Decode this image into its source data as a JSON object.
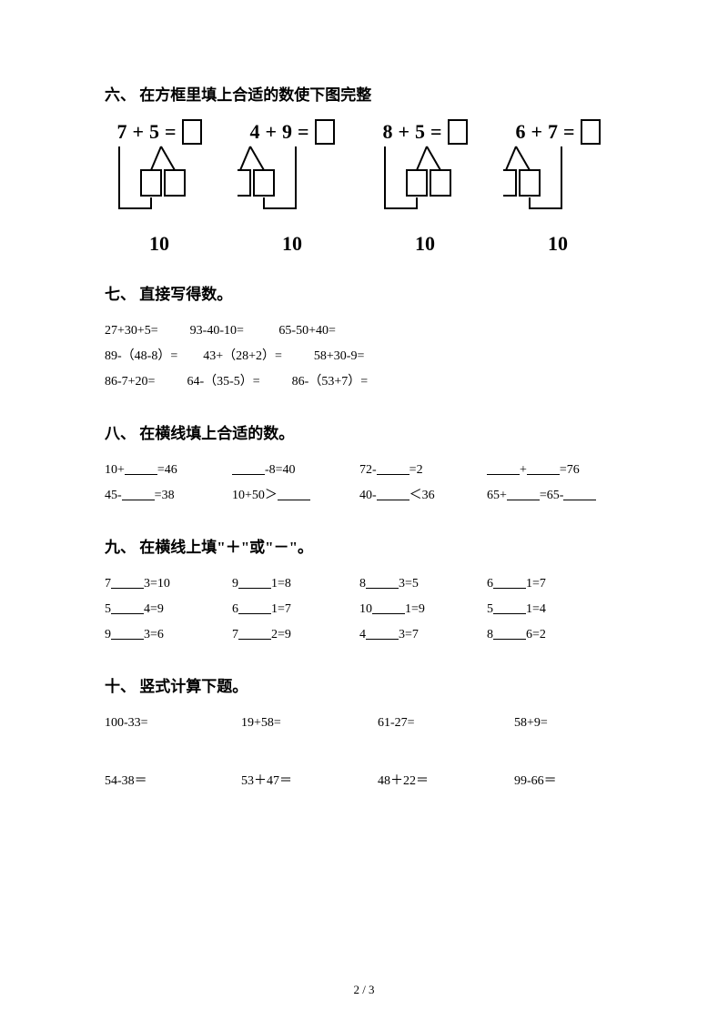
{
  "section6": {
    "title": "六、 在方框里填上合适的数使下图完整",
    "problems": [
      {
        "a": "7",
        "op": "+",
        "b": "5",
        "target": "10"
      },
      {
        "a": "4",
        "op": "+",
        "b": "9",
        "target": "10"
      },
      {
        "a": "8",
        "op": "+",
        "b": "5",
        "target": "10"
      },
      {
        "a": "6",
        "op": "+",
        "b": "7",
        "target": "10"
      }
    ]
  },
  "section7": {
    "title": "七、 直接写得数。",
    "rows": [
      [
        "27+30+5=",
        "93-40-10=",
        "65-50+40="
      ],
      [
        "89-（48-8）=",
        "43+（28+2）=",
        "58+30-9="
      ],
      [
        "86-7+20=",
        "64-（35-5）=",
        "86-（53+7）="
      ]
    ]
  },
  "section8": {
    "title": "八、 在横线填上合适的数。",
    "rows": [
      [
        {
          "pre": "10+",
          "blank": true,
          "post": "=46"
        },
        {
          "pre": "",
          "blank": true,
          "post": "-8=40"
        },
        {
          "pre": "72-",
          "blank": true,
          "post": "=2"
        },
        {
          "pre": "",
          "blank": true,
          "mid": "+",
          "blank2": true,
          "post": "=76"
        }
      ],
      [
        {
          "pre": "45-",
          "blank": true,
          "post": "=38"
        },
        {
          "pre": "10+50＞",
          "blank": true,
          "post": ""
        },
        {
          "pre": "40-",
          "blank": true,
          "post": "＜36"
        },
        {
          "pre": "65+",
          "blank": true,
          "mid": "=65-",
          "blank2": true,
          "post": ""
        }
      ]
    ]
  },
  "section9": {
    "title": "九、 在横线上填\"＋\"或\"－\"。",
    "rows": [
      [
        {
          "a": "7",
          "b": "3=10"
        },
        {
          "a": "9",
          "b": "1=8"
        },
        {
          "a": "8",
          "b": "3=5"
        },
        {
          "a": "6",
          "b": "1=7"
        }
      ],
      [
        {
          "a": "5",
          "b": "4=9"
        },
        {
          "a": "6",
          "b": "1=7"
        },
        {
          "a": "10",
          "b": "1=9"
        },
        {
          "a": "5",
          "b": "1=4"
        }
      ],
      [
        {
          "a": "9",
          "b": "3=6"
        },
        {
          "a": "7",
          "b": "2=9"
        },
        {
          "a": "4",
          "b": "3=7"
        },
        {
          "a": "8",
          "b": "6=2"
        }
      ]
    ]
  },
  "section10": {
    "title": "十、 竖式计算下题。",
    "rows": [
      [
        "100-33=",
        "19+58=",
        "61-27=",
        "58+9="
      ],
      [
        "54-38＝",
        "53＋47＝",
        "48＋22＝",
        "99-66＝"
      ]
    ]
  },
  "pageNumber": "2 / 3"
}
